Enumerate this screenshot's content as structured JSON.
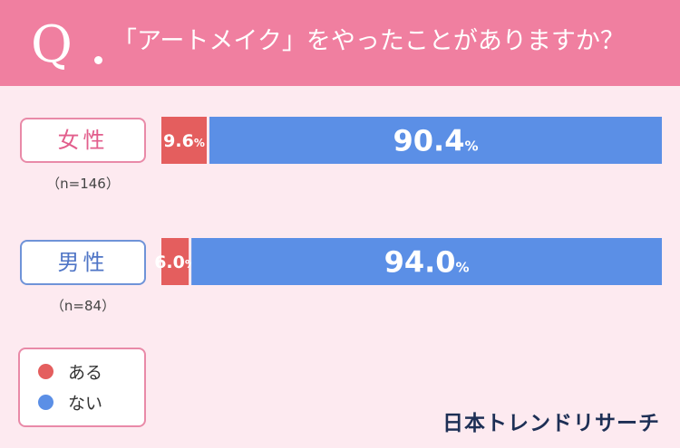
{
  "header": {
    "q_mark": "Q",
    "question": "「アートメイク」をやったことがありますか？",
    "bg_color": "#f07fa0"
  },
  "groups": [
    {
      "label": "女性",
      "n": "（n=146）"
    },
    {
      "label": "男性",
      "n": "（n=84）"
    }
  ],
  "legend": {
    "items": [
      {
        "label": "ある",
        "color": "#e45e5e"
      },
      {
        "label": "ない",
        "color": "#5b8fe6"
      }
    ]
  },
  "brand": "日本トレンドリサーチ",
  "chart_data": {
    "type": "bar",
    "orientation": "horizontal",
    "stacked": true,
    "categories": [
      "女性",
      "男性"
    ],
    "series": [
      {
        "name": "ある",
        "values": [
          9.6,
          6.0
        ],
        "color": "#e45e5e"
      },
      {
        "name": "ない",
        "values": [
          90.4,
          94.0
        ],
        "color": "#5b8fe6"
      }
    ],
    "value_suffix": "%",
    "xlim": [
      0,
      100
    ]
  }
}
